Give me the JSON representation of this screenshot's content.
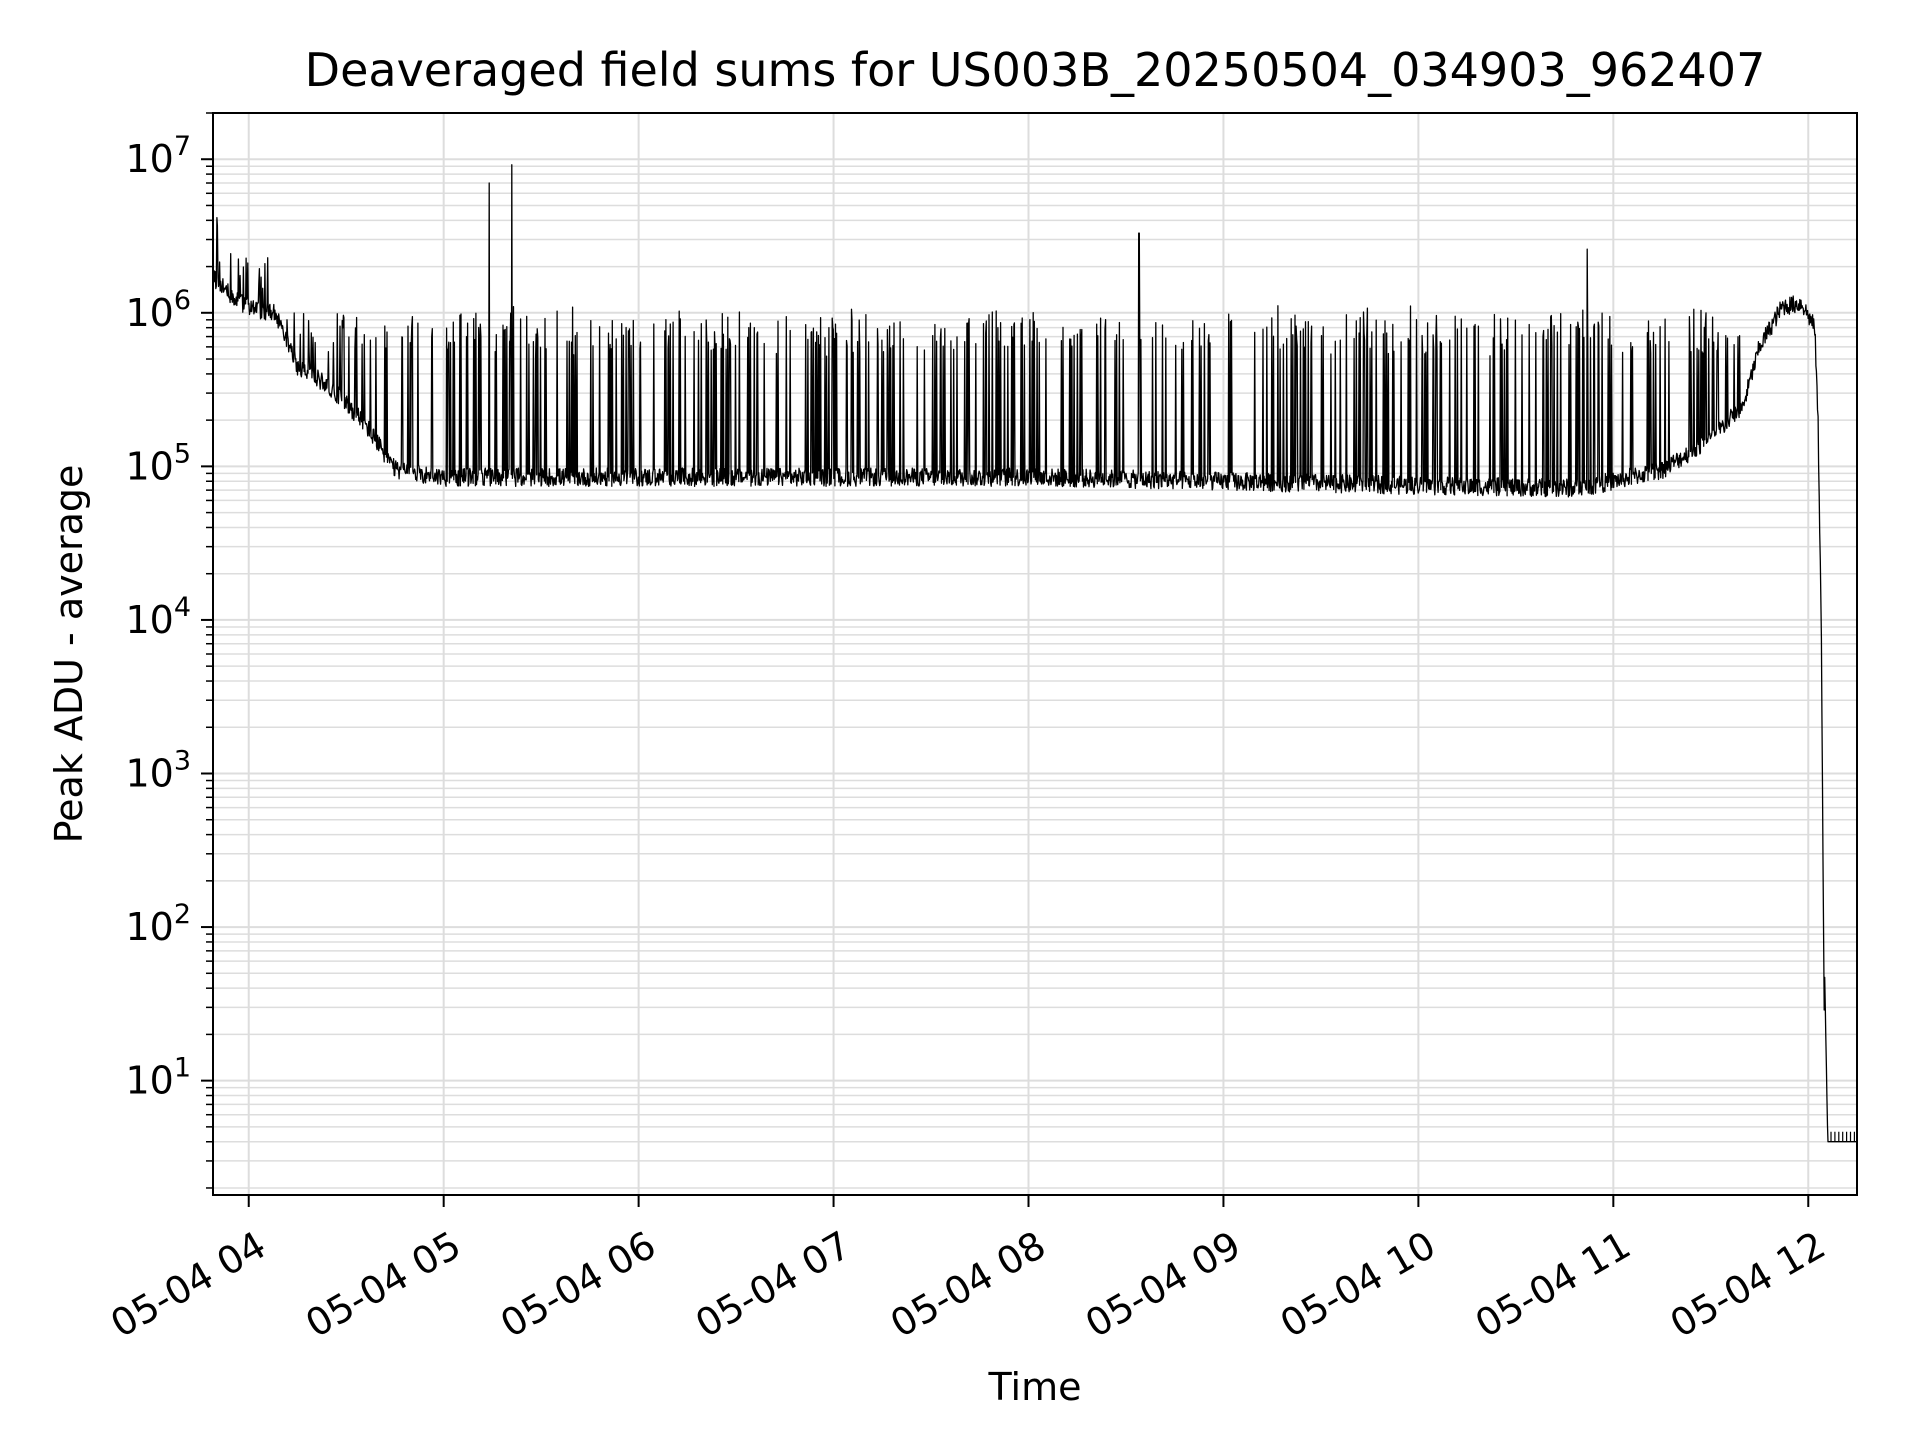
{
  "chart_data": {
    "type": "line",
    "title": "Deaveraged field sums for US003B_20250504_034903_962407",
    "xlabel": "Time",
    "ylabel": "Peak ADU - average",
    "yscale": "log",
    "ylim": [
      1.8,
      20000000
    ],
    "xlim": [
      "05-04 03:49",
      "05-04 12:15"
    ],
    "grid": "major and minor, light gray",
    "line_color": "#000000",
    "x_ticks": [
      "05-04 04",
      "05-04 05",
      "05-04 06",
      "05-04 07",
      "05-04 08",
      "05-04 09",
      "05-04 10",
      "05-04 11",
      "05-04 12"
    ],
    "y_ticks": [
      {
        "value": 10,
        "base": "10",
        "exp": "1"
      },
      {
        "value": 100,
        "base": "10",
        "exp": "2"
      },
      {
        "value": 1000,
        "base": "10",
        "exp": "3"
      },
      {
        "value": 10000,
        "base": "10",
        "exp": "4"
      },
      {
        "value": 100000,
        "base": "10",
        "exp": "5"
      },
      {
        "value": 1000000,
        "base": "10",
        "exp": "6"
      },
      {
        "value": 10000000,
        "base": "10",
        "exp": "7"
      }
    ],
    "series": [
      {
        "baseline_profile": [
          {
            "time": "05-04 03:49",
            "value": 1700000
          },
          {
            "time": "05-04 03:56",
            "value": 1200000
          },
          {
            "time": "05-04 04:03",
            "value": 1050000
          },
          {
            "time": "05-04 04:08",
            "value": 1000000
          },
          {
            "time": "05-04 04:15",
            "value": 450000
          },
          {
            "time": "05-04 04:25",
            "value": 330000
          },
          {
            "time": "05-04 04:35",
            "value": 200000
          },
          {
            "time": "05-04 04:45",
            "value": 95000
          },
          {
            "time": "05-04 05:00",
            "value": 85000
          },
          {
            "time": "05-04 06:00",
            "value": 85000
          },
          {
            "time": "05-04 07:00",
            "value": 85000
          },
          {
            "time": "05-04 08:00",
            "value": 85000
          },
          {
            "time": "05-04 09:00",
            "value": 80000
          },
          {
            "time": "05-04 10:00",
            "value": 75000
          },
          {
            "time": "05-04 10:50",
            "value": 72000
          },
          {
            "time": "05-04 11:15",
            "value": 95000
          },
          {
            "time": "05-04 11:30",
            "value": 150000
          },
          {
            "time": "05-04 11:40",
            "value": 250000
          },
          {
            "time": "05-04 11:45",
            "value": 600000
          },
          {
            "time": "05-04 11:52",
            "value": 1100000
          },
          {
            "time": "05-04 11:58",
            "value": 1150000
          },
          {
            "time": "05-04 12:02",
            "value": 800000
          },
          {
            "time": "05-04 12:03",
            "value": 200000
          },
          {
            "time": "05-04 12:04",
            "value": 10000
          },
          {
            "time": "05-04 12:05",
            "value": 14
          },
          {
            "time": "05-04 12:05",
            "value": 55
          },
          {
            "time": "05-04 12:06",
            "value": 4
          },
          {
            "time": "05-04 12:15",
            "value": 4
          }
        ],
        "spike_band": {
          "from": "05-04 04:10",
          "to": "05-04 11:40",
          "typical_peak": 1000000
        },
        "notable_spikes": [
          {
            "time": "05-04 05:14",
            "value": 7000000
          },
          {
            "time": "05-04 05:21",
            "value": 9200000
          },
          {
            "time": "05-04 08:34",
            "value": 3300000
          },
          {
            "time": "05-04 10:52",
            "value": 2600000
          }
        ]
      }
    ]
  }
}
